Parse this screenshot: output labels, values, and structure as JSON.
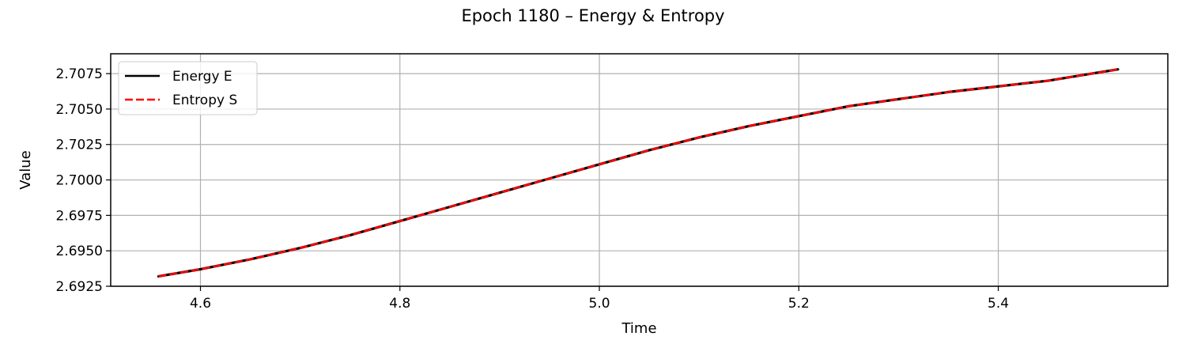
{
  "chart_data": {
    "type": "line",
    "title": "Epoch 1180 – Energy & Entropy",
    "xlabel": "Time",
    "ylabel": "Value",
    "xlim": [
      4.51,
      5.57
    ],
    "ylim": [
      2.6925,
      2.7089
    ],
    "xticks": [
      4.6,
      4.8,
      5.0,
      5.2,
      5.4
    ],
    "xtick_labels": [
      "4.6",
      "4.8",
      "5.0",
      "5.2",
      "5.4"
    ],
    "yticks": [
      2.6925,
      2.695,
      2.6975,
      2.7,
      2.7025,
      2.705,
      2.7075
    ],
    "ytick_labels": [
      "2.6925",
      "2.6950",
      "2.6975",
      "2.7000",
      "2.7025",
      "2.7050",
      "2.7075"
    ],
    "grid": true,
    "legend_position": "top-left",
    "series": [
      {
        "name": "Energy E",
        "color": "#000000",
        "style": "solid",
        "x": [
          4.558,
          4.6,
          4.65,
          4.7,
          4.75,
          4.8,
          4.85,
          4.9,
          4.95,
          5.0,
          5.05,
          5.1,
          5.15,
          5.2,
          5.25,
          5.3,
          5.35,
          5.4,
          5.45,
          5.52
        ],
        "y": [
          2.6932,
          2.6937,
          2.6944,
          2.6952,
          2.6961,
          2.6971,
          2.6981,
          2.6991,
          2.7001,
          2.7011,
          2.7021,
          2.703,
          2.7038,
          2.7045,
          2.7052,
          2.7057,
          2.7062,
          2.7066,
          2.707,
          2.7078
        ]
      },
      {
        "name": "Entropy S",
        "color": "#ff0000",
        "style": "dashed",
        "x": [
          4.558,
          4.6,
          4.65,
          4.7,
          4.75,
          4.8,
          4.85,
          4.9,
          4.95,
          5.0,
          5.05,
          5.1,
          5.15,
          5.2,
          5.25,
          5.3,
          5.35,
          5.4,
          5.45,
          5.52
        ],
        "y": [
          2.6932,
          2.6937,
          2.6944,
          2.6952,
          2.6961,
          2.6971,
          2.6981,
          2.6991,
          2.7001,
          2.7011,
          2.7021,
          2.703,
          2.7038,
          2.7045,
          2.7052,
          2.7057,
          2.7062,
          2.7066,
          2.707,
          2.7078
        ]
      }
    ]
  }
}
